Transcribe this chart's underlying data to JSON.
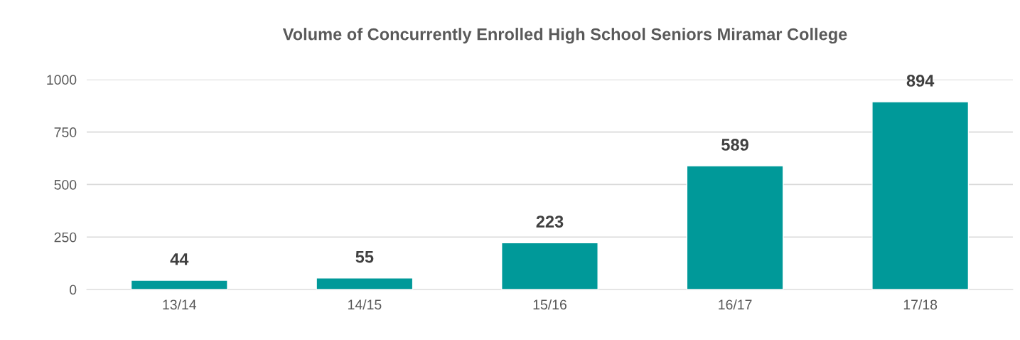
{
  "chart_data": {
    "type": "bar",
    "title": "Volume of Concurrently Enrolled High School Seniors Miramar College",
    "categories": [
      "13/14",
      "14/15",
      "15/16",
      "16/17",
      "17/18"
    ],
    "values": [
      44,
      55,
      223,
      589,
      894
    ],
    "color": "#009999",
    "ylim": [
      0,
      1000
    ],
    "yticks": [
      0,
      250,
      500,
      750,
      1000
    ],
    "grid": "y",
    "data_labels": true
  }
}
